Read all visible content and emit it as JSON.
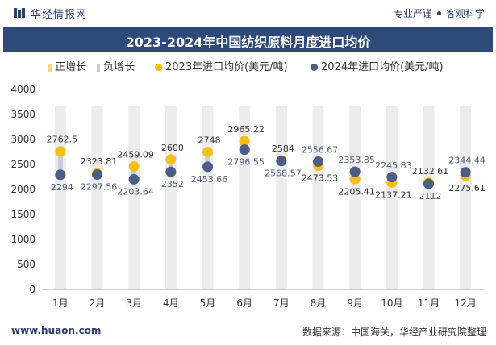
{
  "header": {
    "brand": "华经情报网",
    "slogan_left": "专业严谨",
    "slogan_right": "客观科学"
  },
  "legend": {
    "positive": "正增长",
    "negative": "负增长",
    "series_2023": "2023年进口均价(美元/吨)",
    "series_2024": "2024年进口均价(美元/吨)"
  },
  "footer": {
    "url": "www.huaon.com",
    "source": "数据来源：中国海关，华经产业研究院整理"
  },
  "colors": {
    "header_bar": "#2d4a7a",
    "series_2023": "#f7be16",
    "series_2024": "#4c5d86",
    "positive_bar": "#f3d983",
    "negative_bar": "#c7cde0",
    "background_column": "#ececec"
  },
  "chart_data": {
    "type": "line",
    "title": "2023-2024年中国纺织原料月度进口均价",
    "categories": [
      "1月",
      "2月",
      "3月",
      "4月",
      "5月",
      "6月",
      "7月",
      "8月",
      "9月",
      "10月",
      "11月",
      "12月"
    ],
    "series": [
      {
        "name": "2023年进口均价(美元/吨)",
        "values": [
          2762.5,
          2323.81,
          2459.09,
          2600,
          2748,
          2965.22,
          2584,
          2473.53,
          2205.41,
          2137.21,
          2132.61,
          2275.61
        ]
      },
      {
        "name": "2024年进口均价(美元/吨)",
        "values": [
          2294,
          2297.56,
          2203.64,
          2352,
          2453.66,
          2796.55,
          2568.57,
          2556.67,
          2353.85,
          2245.83,
          2112,
          2344.44
        ]
      }
    ],
    "value_labels": {
      "series_2023": [
        "2762.5",
        "2323.81",
        "2459.09",
        "2600",
        "2748",
        "2965.22",
        "2584",
        "2473.53",
        "2205.41",
        "2137.21",
        "2132.61",
        "2275.61"
      ],
      "series_2024": [
        "2294",
        "2297.56",
        "2203.64",
        "2352",
        "2453.66",
        "2796.55",
        "2568.57",
        "2556.67",
        "2353.85",
        "2245.83",
        "2112",
        "2344.44"
      ]
    },
    "yticks": [
      "0",
      "500",
      "1000",
      "1500",
      "2000",
      "2500",
      "3000",
      "3500",
      "4000"
    ],
    "ylim": [
      0,
      4000
    ],
    "legend_position": "top"
  }
}
